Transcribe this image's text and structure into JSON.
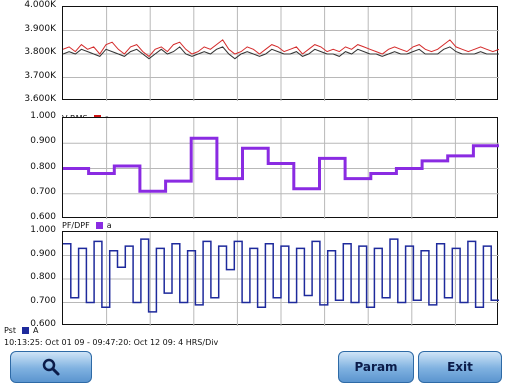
{
  "panels": [
    {
      "id": "freq",
      "y_labels": [
        "4.000K",
        "3.900K",
        "3.800K",
        "3.700K",
        "3.600K"
      ],
      "legend_label": "",
      "trace_colors": [
        "#d42a2a",
        "#333333"
      ],
      "ymin": 3.6,
      "ymax": 4.0,
      "series": [
        {
          "values": [
            3.82,
            3.83,
            3.81,
            3.84,
            3.82,
            3.83,
            3.8,
            3.84,
            3.85,
            3.82,
            3.8,
            3.83,
            3.84,
            3.81,
            3.79,
            3.82,
            3.83,
            3.81,
            3.84,
            3.85,
            3.82,
            3.8,
            3.81,
            3.83,
            3.82,
            3.84,
            3.86,
            3.82,
            3.8,
            3.81,
            3.83,
            3.82,
            3.8,
            3.82,
            3.84,
            3.83,
            3.81,
            3.82,
            3.83,
            3.8,
            3.82,
            3.84,
            3.83,
            3.81,
            3.82,
            3.81,
            3.83,
            3.82,
            3.84,
            3.83,
            3.82,
            3.81,
            3.8,
            3.82,
            3.83,
            3.82,
            3.81,
            3.83,
            3.84,
            3.82,
            3.81,
            3.82,
            3.84,
            3.86,
            3.83,
            3.82,
            3.81,
            3.82,
            3.83,
            3.82,
            3.81,
            3.82
          ]
        },
        {
          "values": [
            3.8,
            3.81,
            3.8,
            3.82,
            3.81,
            3.8,
            3.79,
            3.82,
            3.81,
            3.8,
            3.79,
            3.81,
            3.82,
            3.8,
            3.78,
            3.8,
            3.82,
            3.8,
            3.81,
            3.83,
            3.8,
            3.79,
            3.8,
            3.81,
            3.8,
            3.82,
            3.83,
            3.8,
            3.78,
            3.8,
            3.81,
            3.8,
            3.79,
            3.8,
            3.82,
            3.81,
            3.8,
            3.8,
            3.81,
            3.79,
            3.8,
            3.82,
            3.81,
            3.8,
            3.8,
            3.79,
            3.81,
            3.8,
            3.82,
            3.81,
            3.8,
            3.8,
            3.79,
            3.8,
            3.81,
            3.8,
            3.8,
            3.81,
            3.82,
            3.8,
            3.8,
            3.8,
            3.82,
            3.83,
            3.81,
            3.8,
            3.8,
            3.8,
            3.81,
            3.8,
            3.8,
            3.8
          ]
        }
      ]
    },
    {
      "id": "vrms",
      "y_labels": [
        "1.000",
        "0.900",
        "0.800",
        "0.700",
        "0.600"
      ],
      "legend_label": "V RMS",
      "legend_item": "a",
      "legend_color": "#cc1111",
      "trace_colors": [
        "#8a2be2"
      ],
      "ymin": 0.6,
      "ymax": 1.0,
      "series": [
        {
          "values": [
            0.8,
            0.8,
            0.78,
            0.78,
            0.81,
            0.81,
            0.71,
            0.71,
            0.75,
            0.75,
            0.92,
            0.92,
            0.76,
            0.76,
            0.88,
            0.88,
            0.82,
            0.82,
            0.72,
            0.72,
            0.84,
            0.84,
            0.76,
            0.76,
            0.78,
            0.78,
            0.8,
            0.8,
            0.83,
            0.83,
            0.85,
            0.85,
            0.89,
            0.89
          ]
        }
      ]
    },
    {
      "id": "pf",
      "y_labels": [
        "1.000",
        "0.900",
        "0.800",
        "0.700",
        "0.600"
      ],
      "legend_label": "PF/DPF",
      "legend_item": "a",
      "legend_color": "#8a2be2",
      "trace_colors": [
        "#1e2a9c"
      ],
      "ymin": 0.6,
      "ymax": 1.0,
      "series": [
        {
          "values": [
            0.95,
            0.72,
            0.93,
            0.7,
            0.96,
            0.68,
            0.92,
            0.85,
            0.94,
            0.7,
            0.97,
            0.66,
            0.93,
            0.74,
            0.95,
            0.7,
            0.92,
            0.69,
            0.96,
            0.72,
            0.94,
            0.84,
            0.96,
            0.7,
            0.93,
            0.68,
            0.95,
            0.72,
            0.94,
            0.7,
            0.93,
            0.73,
            0.96,
            0.69,
            0.92,
            0.71,
            0.95,
            0.7,
            0.94,
            0.68,
            0.93,
            0.72,
            0.97,
            0.7,
            0.94,
            0.71,
            0.92,
            0.69,
            0.95,
            0.72,
            0.93,
            0.7,
            0.96,
            0.68,
            0.94,
            0.71
          ]
        }
      ]
    }
  ],
  "bottom_legend": {
    "label": "Pst",
    "item": "A",
    "color": "#1e2a9c"
  },
  "time_line": "10:13:25: Oct 01 09 - 09:47:20: Oct 12 09:     4 HRS/Div",
  "buttons": {
    "zoom_icon": "magnifier-icon",
    "param": "Param",
    "exit": "Exit"
  }
}
